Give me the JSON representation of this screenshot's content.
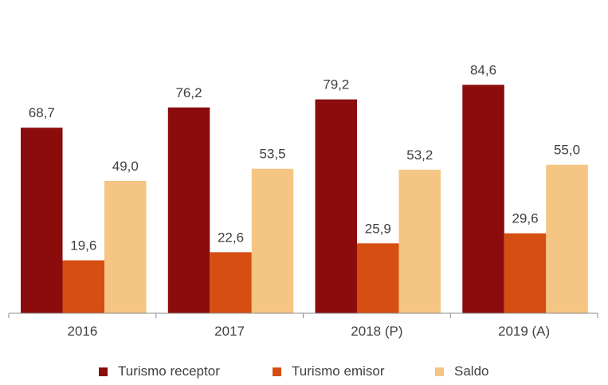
{
  "chart_data": {
    "type": "bar",
    "categories": [
      "2016",
      "2017",
      "2018 (P)",
      "2019 (A)"
    ],
    "series": [
      {
        "name": "Turismo receptor",
        "values": [
          68.7,
          76.2,
          79.2,
          84.6
        ],
        "labels": [
          "68,7",
          "76,2",
          "79,2",
          "84,6"
        ],
        "color": "#8b0c0c"
      },
      {
        "name": "Turismo emisor",
        "values": [
          19.6,
          22.6,
          25.9,
          29.6
        ],
        "labels": [
          "19,6",
          "22,6",
          "25,9",
          "29,6"
        ],
        "color": "#d64e12"
      },
      {
        "name": "Saldo",
        "values": [
          49.0,
          53.5,
          53.2,
          55.0
        ],
        "labels": [
          "49,0",
          "53,5",
          "53,2",
          "55,0"
        ],
        "color": "#f5c583"
      }
    ],
    "ylim": [
      0,
      90
    ],
    "grid": false,
    "legend_position": "bottom"
  }
}
